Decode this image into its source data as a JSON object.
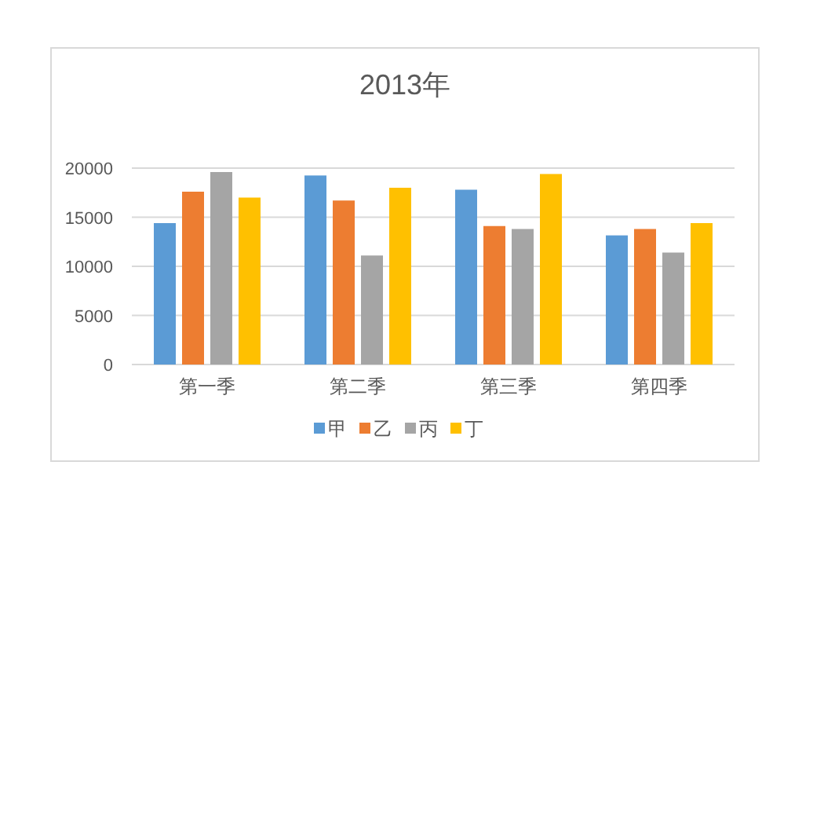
{
  "chart_data": {
    "type": "bar",
    "title": "2013年",
    "categories": [
      "第一季",
      "第二季",
      "第三季",
      "第四季"
    ],
    "series": [
      {
        "name": "甲",
        "color": "#5b9bd5",
        "values": [
          14400,
          19250,
          17800,
          13150
        ]
      },
      {
        "name": "乙",
        "color": "#ed7d31",
        "values": [
          17600,
          16700,
          14100,
          13800
        ]
      },
      {
        "name": "丙",
        "color": "#a5a5a5",
        "values": [
          19600,
          11100,
          13800,
          11400
        ]
      },
      {
        "name": "丁",
        "color": "#ffc000",
        "values": [
          17000,
          18000,
          19400,
          14400
        ]
      }
    ],
    "ylim": [
      0,
      20000
    ],
    "yticks": [
      0,
      5000,
      10000,
      15000,
      20000
    ],
    "grid": "y",
    "legend": "bottom"
  }
}
